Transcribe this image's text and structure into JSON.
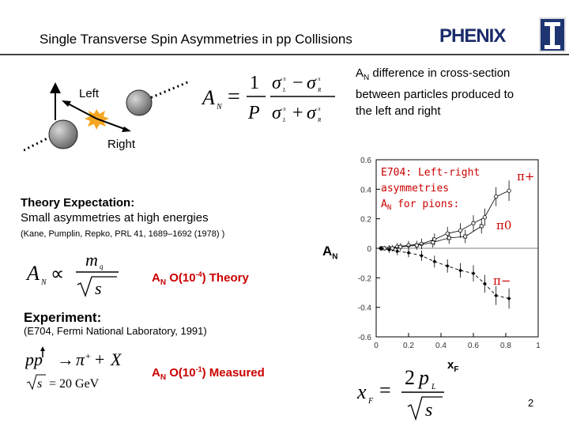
{
  "title": "Single Transverse Spin Asymmetries in pp Collisions",
  "logo": {
    "phenix": "PHENIX",
    "illinois_letter": "I",
    "brand_color": "#1b2c6b"
  },
  "definition_note": {
    "line1_prefix": "A",
    "line1_sub": "N",
    "line1_rest": " difference in cross-section",
    "line2": "between particles produced to",
    "line3": "the left and right"
  },
  "labels": {
    "left": "Left",
    "right": "Right"
  },
  "theory": {
    "heading": "Theory Expectation:",
    "text": "Small asymmetries at high energies",
    "citation": "(Kane, Pumplin, Repko, PRL 41, 1689–1692 (1978) )",
    "result_prefix": "A",
    "result_sub": "N",
    "result_mid": " O(10",
    "result_sup": "-4",
    "result_suffix": ") Theory"
  },
  "experiment": {
    "heading": "Experiment:",
    "citation": "(E704, Fermi National Laboratory, 1991)",
    "result_prefix": "A",
    "result_sub": "N",
    "result_mid": " O(10",
    "result_sup": "-1",
    "result_suffix": ") Measured"
  },
  "axis_label_y": {
    "prefix": "A",
    "sub": "N"
  },
  "axis_label_x": {
    "prefix": "x",
    "sub": "F"
  },
  "page_number": "2",
  "colors": {
    "accent_red": "#cc0000",
    "spark": "#f5a623"
  },
  "chart_data": {
    "type": "scatter",
    "annotation": [
      "E704: Left-right",
      "asymmetries",
      "A",
      "N",
      " for pions:"
    ],
    "xlim": [
      0,
      1
    ],
    "ylim": [
      -0.6,
      0.6
    ],
    "x_ticks": [
      "0",
      "0.2",
      "0.4",
      "0.6",
      "0.8",
      "1"
    ],
    "y_ticks": [
      "-0.6",
      "-0.4",
      "-0.2",
      "0",
      "0.2",
      "0.4",
      "0.6"
    ],
    "series": [
      {
        "name": "π+",
        "x": [
          0.03,
          0.08,
          0.13,
          0.2,
          0.28,
          0.36,
          0.44,
          0.52,
          0.6,
          0.67,
          0.74,
          0.82
        ],
        "y": [
          0.0,
          0.0,
          0.01,
          0.02,
          0.03,
          0.06,
          0.1,
          0.12,
          0.17,
          0.21,
          0.35,
          0.39
        ]
      },
      {
        "name": "π0",
        "x": [
          0.05,
          0.1,
          0.15,
          0.25,
          0.35,
          0.45,
          0.55,
          0.65
        ],
        "y": [
          0.0,
          0.0,
          0.01,
          0.02,
          0.04,
          0.07,
          0.08,
          0.15
        ]
      },
      {
        "name": "π−",
        "x": [
          0.03,
          0.08,
          0.13,
          0.2,
          0.28,
          0.36,
          0.44,
          0.52,
          0.6,
          0.67,
          0.74,
          0.82
        ],
        "y": [
          0.0,
          -0.01,
          -0.02,
          -0.03,
          -0.05,
          -0.09,
          -0.12,
          -0.15,
          -0.17,
          -0.24,
          -0.32,
          -0.34
        ]
      }
    ]
  }
}
